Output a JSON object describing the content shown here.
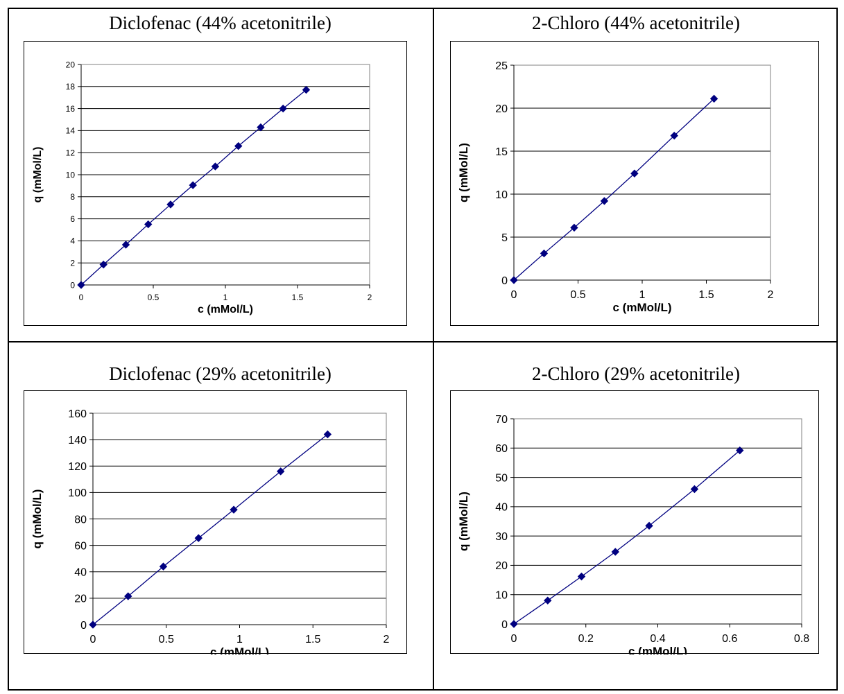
{
  "panels": [
    {
      "title": "Diclofenac (44% acetonitrile)",
      "chart_data": {
        "type": "scatter",
        "xlabel": "c (mMol/L)",
        "ylabel": "q (mMol/L)",
        "xlim": [
          0,
          2
        ],
        "ylim": [
          0,
          20
        ],
        "xticks": [
          "0",
          "0.5",
          "1",
          "1.5",
          "2"
        ],
        "yticks": [
          "0",
          "2",
          "4",
          "6",
          "8",
          "10",
          "12",
          "14",
          "16",
          "18",
          "20"
        ],
        "grid": "horizontal",
        "series": [
          {
            "x": [
              0,
              0.155,
              0.31,
              0.465,
              0.62,
              0.775,
              0.93,
              1.09,
              1.245,
              1.4,
              1.56
            ],
            "y": [
              0,
              1.85,
              3.65,
              5.5,
              7.3,
              9.05,
              10.75,
              12.6,
              14.3,
              16.0,
              17.7
            ]
          }
        ],
        "color": "#000080"
      }
    },
    {
      "title": "2-Chloro (44% acetonitrile)",
      "chart_data": {
        "type": "scatter",
        "xlabel": "c (mMol/L)",
        "ylabel": "q (mMol/L)",
        "xlim": [
          0,
          2
        ],
        "ylim": [
          0,
          25
        ],
        "xticks": [
          "0",
          "0.5",
          "1",
          "1.5",
          "2"
        ],
        "yticks": [
          "0",
          "5",
          "10",
          "15",
          "20",
          "25"
        ],
        "grid": "horizontal",
        "series": [
          {
            "x": [
              0,
              0.235,
              0.47,
              0.705,
              0.94,
              1.25,
              1.56
            ],
            "y": [
              0,
              3.1,
              6.1,
              9.2,
              12.4,
              16.8,
              21.1
            ]
          }
        ],
        "color": "#000080"
      }
    },
    {
      "title": "Diclofenac (29% acetonitrile)",
      "chart_data": {
        "type": "scatter",
        "xlabel": "c (mMol/L)",
        "ylabel": "q (mMol/L)",
        "xlim": [
          0,
          2
        ],
        "ylim": [
          0,
          160
        ],
        "xticks": [
          "0",
          "0.5",
          "1",
          "1.5",
          "2"
        ],
        "yticks": [
          "0",
          "20",
          "40",
          "60",
          "80",
          "100",
          "120",
          "140",
          "160"
        ],
        "grid": "horizontal",
        "series": [
          {
            "x": [
              0,
              0.24,
              0.48,
              0.72,
              0.96,
              1.28,
              1.6
            ],
            "y": [
              0,
              21.5,
              44,
              65.5,
              87,
              116,
              144
            ]
          }
        ],
        "color": "#000080"
      }
    },
    {
      "title": "2-Chloro (29% acetonitrile)",
      "chart_data": {
        "type": "scatter",
        "xlabel": "c (mMol/L)",
        "ylabel": "q (mMol/L)",
        "xlim": [
          0,
          0.8
        ],
        "ylim": [
          0,
          70
        ],
        "xticks": [
          "0",
          "0.2",
          "0.4",
          "0.6",
          "0.8"
        ],
        "yticks": [
          "0",
          "10",
          "20",
          "30",
          "40",
          "50",
          "60",
          "70"
        ],
        "grid": "horizontal",
        "series": [
          {
            "x": [
              0,
              0.094,
              0.188,
              0.282,
              0.376,
              0.502,
              0.628
            ],
            "y": [
              0,
              8.0,
              16.2,
              24.6,
              33.5,
              46.0,
              59.2
            ]
          }
        ],
        "color": "#000080"
      }
    }
  ]
}
